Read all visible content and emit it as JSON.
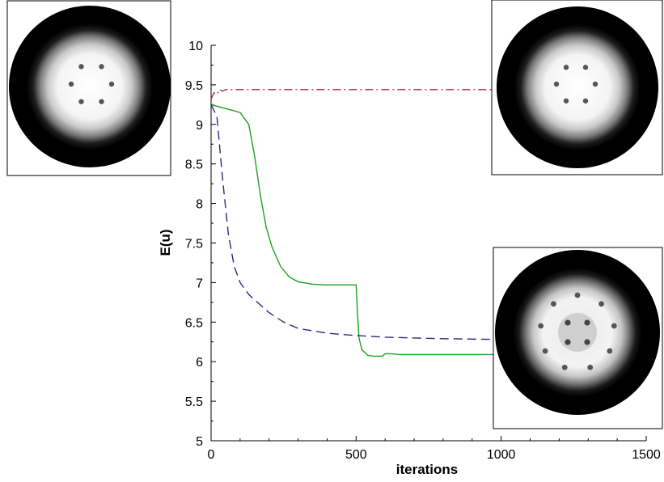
{
  "chart_data": {
    "type": "line",
    "xlabel": "iterations",
    "ylabel": "E(u)",
    "xlim": [
      0,
      1500
    ],
    "ylim": [
      5,
      10
    ],
    "xticks": [
      0,
      500,
      1000,
      1500
    ],
    "yticks": [
      5,
      5.5,
      6,
      6.5,
      7,
      7.5,
      8,
      8.5,
      9,
      9.5,
      10
    ],
    "ytick_labels": [
      "5",
      "5.5",
      "6",
      "6.5",
      "7",
      "7.5",
      "8",
      "8.5",
      "9",
      "9.5",
      "10"
    ],
    "grid": false,
    "series": [
      {
        "color": "#a0304a",
        "style": "dash-dot",
        "x": [
          0,
          10,
          20,
          30,
          40,
          50,
          70,
          100,
          200,
          500,
          1000
        ],
        "y": [
          9.32,
          9.4,
          9.38,
          9.44,
          9.42,
          9.44,
          9.44,
          9.44,
          9.44,
          9.44,
          9.44
        ]
      },
      {
        "color": "#1fa01f",
        "style": "solid",
        "x": [
          0,
          50,
          100,
          130,
          150,
          170,
          190,
          210,
          240,
          270,
          300,
          350,
          400,
          450,
          500,
          505,
          510,
          520,
          540,
          560,
          590,
          600,
          620,
          650,
          700,
          1000
        ],
        "y": [
          9.25,
          9.2,
          9.15,
          9.0,
          8.6,
          8.1,
          7.7,
          7.45,
          7.2,
          7.07,
          7.01,
          6.98,
          6.97,
          6.97,
          6.97,
          6.6,
          6.3,
          6.15,
          6.08,
          6.07,
          6.07,
          6.1,
          6.1,
          6.09,
          6.09,
          6.09
        ]
      },
      {
        "color": "#2a2a80",
        "style": "dashed",
        "x": [
          0,
          20,
          40,
          60,
          80,
          100,
          130,
          160,
          200,
          250,
          300,
          400,
          500,
          600,
          700,
          800,
          1000
        ],
        "y": [
          9.25,
          9.1,
          8.3,
          7.6,
          7.2,
          7.0,
          6.85,
          6.75,
          6.62,
          6.5,
          6.42,
          6.36,
          6.33,
          6.31,
          6.3,
          6.29,
          6.28
        ]
      }
    ]
  },
  "insets": [
    {
      "name": "initial-state-image",
      "dots": 6
    },
    {
      "name": "dash-dot-final-state-image",
      "dots": 6
    },
    {
      "name": "final-state-image",
      "dots": 13
    }
  ]
}
